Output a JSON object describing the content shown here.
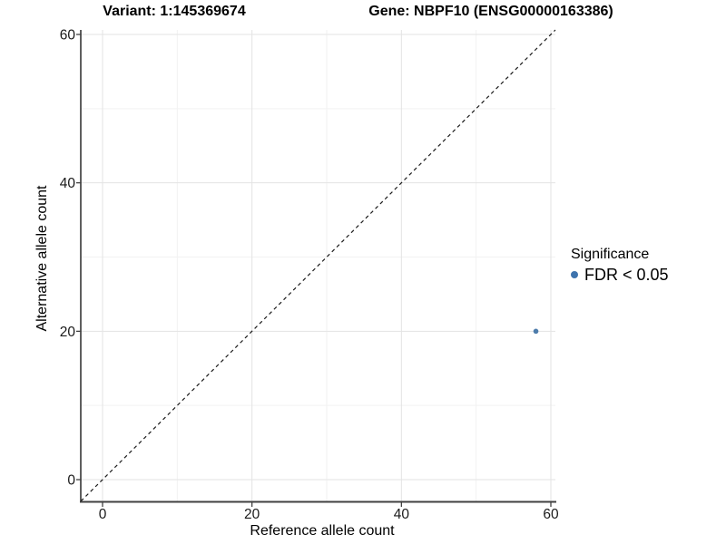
{
  "chart_data": {
    "type": "scatter",
    "title_left": "Variant: 1:145369674",
    "title_right": "Gene: NBPF10 (ENSG00000163386)",
    "xlabel": "Reference allele count",
    "ylabel": "Alternative allele count",
    "xticks": [
      0,
      20,
      40,
      60
    ],
    "yticks": [
      0,
      20,
      40,
      60
    ],
    "xminor": [
      10,
      30,
      50
    ],
    "yminor": [
      10,
      30,
      50
    ],
    "xlim": [
      -2.9,
      60.6
    ],
    "ylim": [
      -2.9,
      60.6
    ],
    "grid": "major+minor",
    "points": [
      {
        "x": 58,
        "y": 20,
        "label": "FDR < 0.05",
        "color": "#4d7cab"
      }
    ],
    "identity_line": {
      "type": "y=x",
      "style": "dashed",
      "from": -2.9,
      "to": 60.6,
      "color": "#1a1a1a"
    },
    "legend": {
      "title": "Significance",
      "position": "right",
      "items": [
        {
          "label": "FDR < 0.05",
          "color": "#3d73ad"
        }
      ]
    },
    "colors": {
      "background": "#ffffff",
      "grid_major": "#e3e3e3",
      "grid_minor": "#f2f2f2",
      "axis_line_left": "#1a1a1a",
      "axis_line_bottom": "#404040",
      "tick_mark": "#333333",
      "tick_label": "#1a1a1a"
    }
  }
}
